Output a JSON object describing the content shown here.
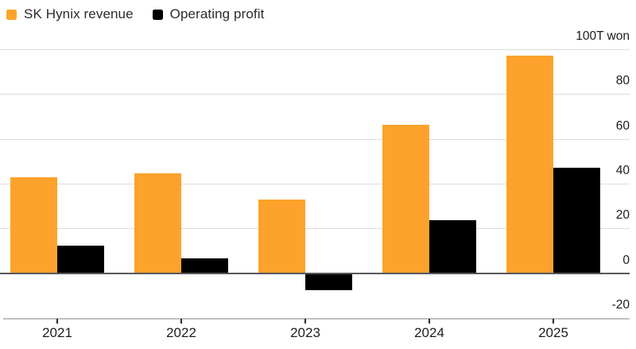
{
  "legend": [
    {
      "label": "SK Hynix revenue",
      "color": "#FDA32B"
    },
    {
      "label": "Operating profit",
      "color": "#000000"
    }
  ],
  "axis": {
    "unit_label": "100T won"
  },
  "chart_data": {
    "type": "bar",
    "title": "",
    "xlabel": "",
    "ylabel": "100T won",
    "categories": [
      "2021",
      "2022",
      "2023",
      "2024",
      "2025"
    ],
    "series": [
      {
        "name": "SK Hynix revenue",
        "key": "revenue",
        "color": "#FDA32B",
        "values": [
          43,
          44.6,
          32.8,
          66.2,
          97
        ]
      },
      {
        "name": "Operating profit",
        "key": "operating-profit",
        "color": "#000000",
        "values": [
          12.4,
          6.8,
          -7.7,
          23.5,
          47
        ]
      }
    ],
    "ylim": [
      -20,
      100
    ],
    "y_tick_labels": [
      80,
      60,
      40,
      20,
      0,
      -20
    ],
    "y_gridlines": [
      100,
      80,
      60,
      40,
      20,
      0,
      -20
    ],
    "grid": true,
    "legend_position": "top-left"
  },
  "colors": {
    "background": "#ffffff",
    "gridline": "#dcdcdc",
    "zero_line": "#55585c",
    "axis_line": "#c2c2c2",
    "text": "#1c1c1c"
  }
}
